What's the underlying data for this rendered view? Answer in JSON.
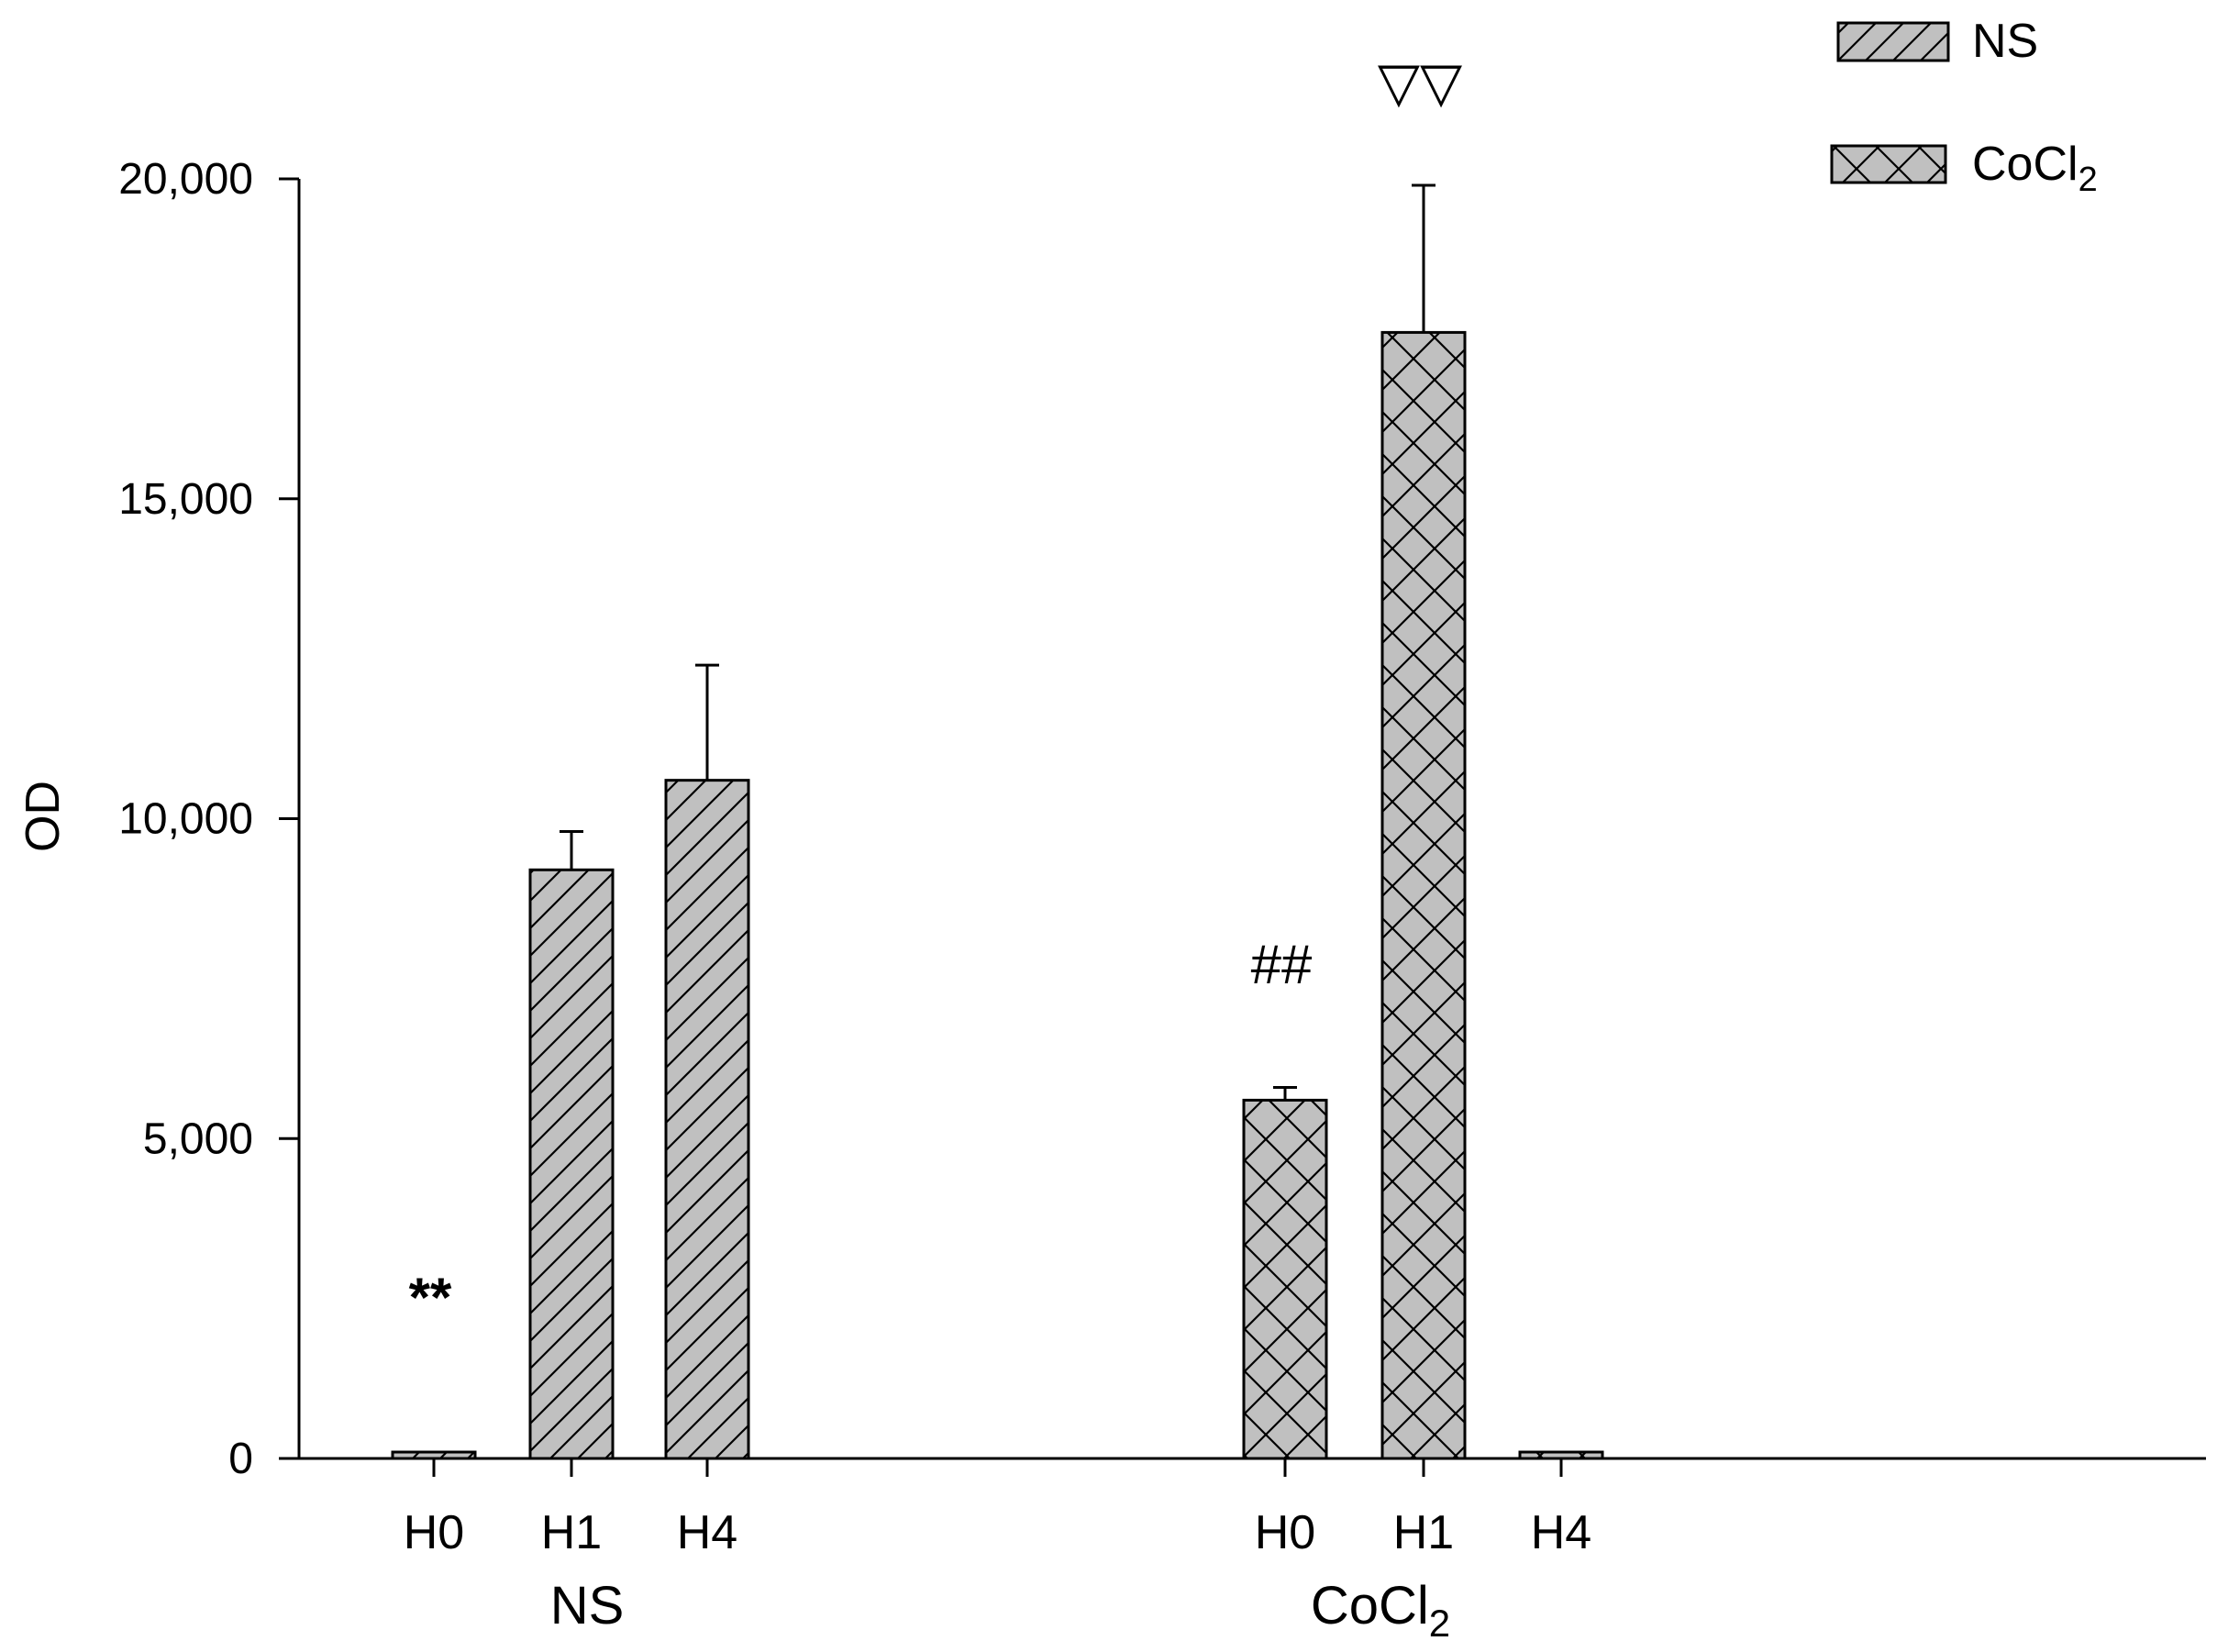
{
  "chart_data": {
    "type": "bar",
    "ylabel": "OD",
    "ylim": [
      0,
      20000
    ],
    "yticks": [
      0,
      5000,
      10000,
      15000,
      20000
    ],
    "ytick_labels": [
      "0",
      "5,000",
      "10,000",
      "15,000",
      "20,000"
    ],
    "grid": false,
    "legend": {
      "placement": "top-right",
      "entries": [
        {
          "label": "NS",
          "pattern": "diagonal-hatch"
        },
        {
          "label": "CoCl",
          "subscript": "2",
          "pattern": "cross-hatch"
        }
      ]
    },
    "groups": [
      {
        "label": "NS",
        "subscript": "",
        "pattern": "diagonal-hatch",
        "categories": [
          "H0",
          "H1",
          "H4"
        ],
        "values": [
          100,
          9200,
          10600
        ],
        "errors": [
          0,
          600,
          1800
        ],
        "annotations": [
          {
            "category": "H0",
            "text": "**"
          }
        ]
      },
      {
        "label": "CoCl",
        "subscript": "2",
        "pattern": "cross-hatch",
        "categories": [
          "H0",
          "H1",
          "H4"
        ],
        "values": [
          5600,
          17600,
          100
        ],
        "errors": [
          200,
          2300,
          0
        ],
        "annotations": [
          {
            "category": "H0",
            "text": "##"
          },
          {
            "category": "H1",
            "text": "▽▽"
          }
        ]
      }
    ],
    "colors": {
      "bar_fill": "#c0c0c0",
      "stroke": "#000000"
    }
  }
}
